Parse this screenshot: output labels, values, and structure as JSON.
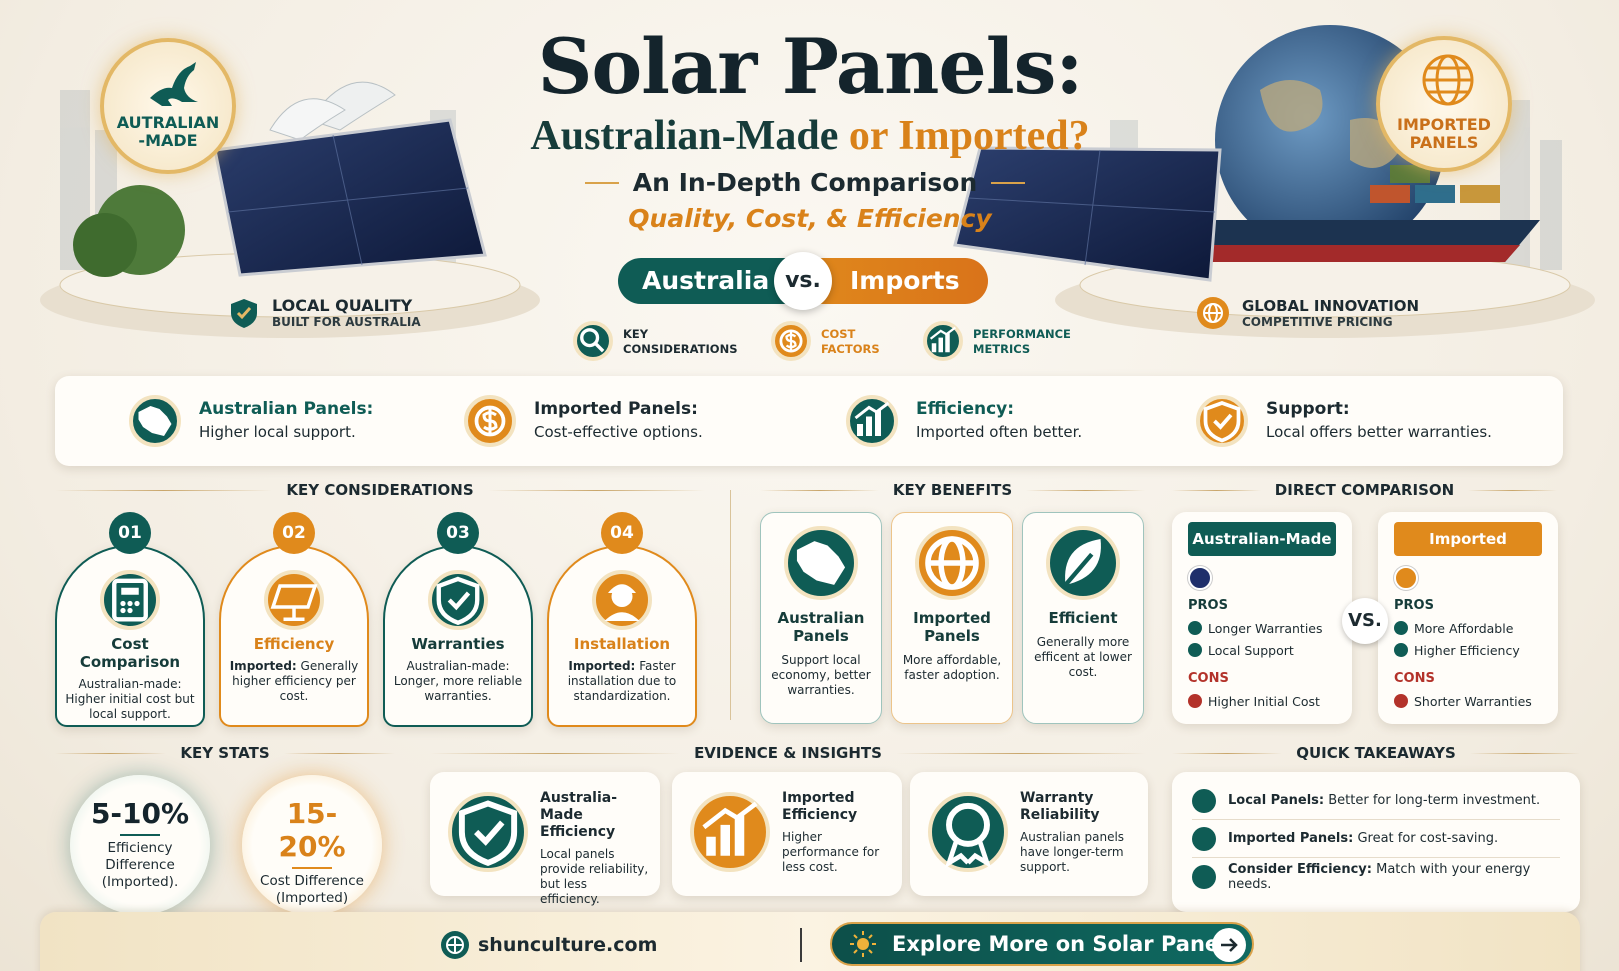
{
  "header": {
    "title": "Solar Panels:",
    "subtitle_a": "Australian-Made",
    "subtitle_or": "or",
    "subtitle_b": "Imported?",
    "tagline": "An In-Depth Comparison",
    "focus": "Quality, Cost, & Efficiency"
  },
  "left_badge": {
    "line1": "AUTRALIAN",
    "line2": "-MADE"
  },
  "left_label": {
    "title": "LOCAL QUALITY",
    "subtitle": "BUILT FOR AUSTRALIA"
  },
  "right_badge": {
    "line1": "IMPORTED",
    "line2": "PANELS"
  },
  "right_label": {
    "title": "GLOBAL INNOVATION",
    "subtitle": "COMPETITIVE PRICING"
  },
  "versus": {
    "left": "Australia",
    "middle": "vs.",
    "right": "Imports"
  },
  "topics": [
    {
      "line1": "KEY",
      "line2": "CONSIDERATIONS"
    },
    {
      "line1": "COST",
      "line2": "FACTORS"
    },
    {
      "line1": "PERFORMANCE",
      "line2": "METRICS"
    }
  ],
  "summary": [
    {
      "title": "Australian Panels:",
      "text": "Higher local support."
    },
    {
      "title": "Imported Panels:",
      "text": "Cost-effective options."
    },
    {
      "title": "Efficiency:",
      "text": "Imported often better."
    },
    {
      "title": "Support:",
      "text": "Local offers better warranties."
    }
  ],
  "key_considerations": {
    "title": "KEY CONSIDERATIONS",
    "items": [
      {
        "number": "01",
        "title": "Cost Comparison",
        "lead": "Australian-made:",
        "text": "Higher initial cost but local support."
      },
      {
        "number": "02",
        "title": "Efficiency",
        "lead": "Imported:",
        "text": "Generally higher efficiency per cost."
      },
      {
        "number": "03",
        "title": "Warranties",
        "lead": "Australian-made:",
        "text": "Longer, more reliable warranties."
      },
      {
        "number": "04",
        "title": "Installation",
        "lead": "Imported:",
        "text": "Faster installation due to standardization."
      }
    ]
  },
  "key_benefits": {
    "title": "KEY BENEFITS",
    "items": [
      {
        "title": "Australian Panels",
        "text": "Support local economy, better warranties."
      },
      {
        "title": "Imported Panels",
        "text": "More affordable, faster adoption."
      },
      {
        "title": "Efficient",
        "text": "Generally more efficent at lower cost."
      }
    ]
  },
  "direct_comparison": {
    "title": "DIRECT COMPARISON",
    "versus": "VS.",
    "columns": [
      {
        "name": "Australian-Made",
        "pros_label": "PROS",
        "pros": [
          "Longer Warranties",
          "Local Support"
        ],
        "cons_label": "CONS",
        "cons": [
          "Higher Initial Cost"
        ]
      },
      {
        "name": "Imported",
        "pros_label": "PROS",
        "pros": [
          "More Affordable",
          "Higher Efficiency"
        ],
        "cons_label": "CONS",
        "cons": [
          "Shorter Warranties"
        ]
      }
    ]
  },
  "key_stats": {
    "title": "KEY STATS",
    "items": [
      {
        "value": "5-10%",
        "label": "Efficiency Difference (Imported)."
      },
      {
        "value": "15-20%",
        "label": "Cost Difference (Imported)"
      }
    ]
  },
  "evidence": {
    "title": "EVIDENCE & INSIGHTS",
    "items": [
      {
        "title": "Australia-Made Efficiency",
        "text": "Local panels provide reliability, but less efficiency."
      },
      {
        "title": "Imported Efficiency",
        "text": "Higher performance for less cost."
      },
      {
        "title": "Warranty Reliability",
        "text": "Australian panels have longer-term support."
      }
    ]
  },
  "takeaways": {
    "title": "QUICK TAKEAWAYS",
    "items": [
      {
        "lead": "Local Panels:",
        "text": "Better for long-term investment."
      },
      {
        "lead": "Imported Panels:",
        "text": "Great for cost-saving."
      },
      {
        "lead": "Consider Efficiency:",
        "text": "Match with your energy needs."
      }
    ]
  },
  "footer": {
    "site": "shunculture.com",
    "cta": "Explore More on Solar Panels"
  }
}
